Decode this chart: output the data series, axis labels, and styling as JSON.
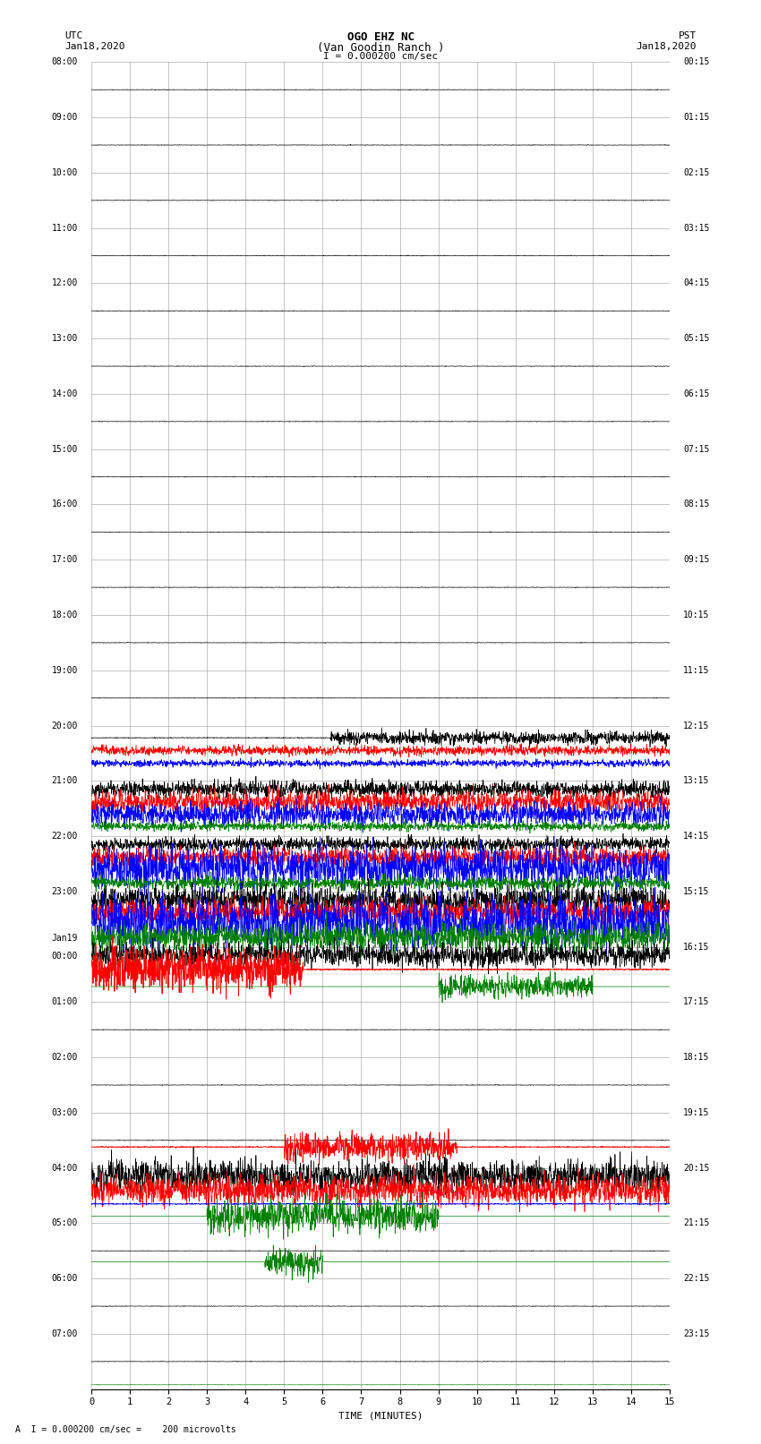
{
  "title_line1": "OGO EHZ NC",
  "title_line2": "(Van Goodin Ranch )",
  "title_line3": "I = 0.000200 cm/sec",
  "utc_left1": "UTC",
  "utc_left2": "Jan18,2020",
  "pst_right1": "PST",
  "pst_right2": "Jan18,2020",
  "xlabel": "TIME (MINUTES)",
  "footer": "A  I = 0.000200 cm/sec =    200 microvolts",
  "xmin": 0,
  "xmax": 15,
  "bg_color": "#ffffff",
  "grid_color": "#999999",
  "utc_labels": [
    "08:00",
    "09:00",
    "10:00",
    "11:00",
    "12:00",
    "13:00",
    "14:00",
    "15:00",
    "16:00",
    "17:00",
    "18:00",
    "19:00",
    "20:00",
    "21:00",
    "22:00",
    "23:00",
    "Jan19\n00:00",
    "01:00",
    "02:00",
    "03:00",
    "04:00",
    "05:00",
    "06:00",
    "07:00"
  ],
  "pst_labels": [
    "00:15",
    "01:15",
    "02:15",
    "03:15",
    "04:15",
    "05:15",
    "06:15",
    "07:15",
    "08:15",
    "09:15",
    "10:15",
    "11:15",
    "12:15",
    "13:15",
    "14:15",
    "15:15",
    "16:15",
    "17:15",
    "18:15",
    "19:15",
    "20:15",
    "21:15",
    "22:15",
    "23:15"
  ],
  "n_rows": 24,
  "sub_rows_per_row": 2,
  "font_size": 7.5,
  "lw": 0.5
}
